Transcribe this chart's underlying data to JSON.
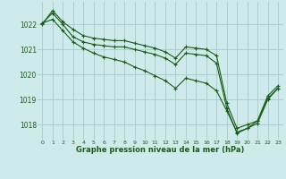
{
  "title": "Graphe pression niveau de la mer (hPa)",
  "bg_color": "#ceeaea",
  "grid_color": "#aad0d0",
  "line_color": "#1a5c1a",
  "xlim": [
    -0.5,
    23.5
  ],
  "ylim": [
    1017.4,
    1022.9
  ],
  "yticks": [
    1018,
    1019,
    1020,
    1021,
    1022
  ],
  "xticks": [
    0,
    1,
    2,
    3,
    4,
    5,
    6,
    7,
    8,
    9,
    10,
    11,
    12,
    13,
    14,
    15,
    16,
    17,
    18,
    19,
    20,
    21,
    22,
    23
  ],
  "series": [
    [
      1022.0,
      1022.55,
      1022.1,
      1021.8,
      1021.55,
      1021.45,
      1021.4,
      1021.35,
      1021.35,
      1021.25,
      1021.15,
      1021.05,
      1020.9,
      1020.65,
      1021.1,
      1021.05,
      1021.0,
      1020.75,
      1018.85,
      1017.85,
      1018.0,
      1018.15,
      1019.15,
      1019.55
    ],
    [
      1022.05,
      1022.45,
      1022.0,
      1021.5,
      1021.3,
      1021.2,
      1021.15,
      1021.1,
      1021.1,
      1021.0,
      1020.9,
      1020.8,
      1020.65,
      1020.4,
      1020.85,
      1020.8,
      1020.75,
      1020.45,
      1018.65,
      1017.65,
      1017.85,
      1018.05,
      1019.0,
      1019.45
    ],
    [
      1022.05,
      1022.2,
      1021.75,
      1021.3,
      1021.05,
      1020.85,
      1020.7,
      1020.6,
      1020.5,
      1020.3,
      1020.15,
      1019.95,
      1019.75,
      1019.45,
      1019.85,
      1019.75,
      1019.65,
      1019.35,
      1018.55,
      1017.7,
      1017.85,
      1018.15,
      1019.05,
      1019.45
    ]
  ]
}
